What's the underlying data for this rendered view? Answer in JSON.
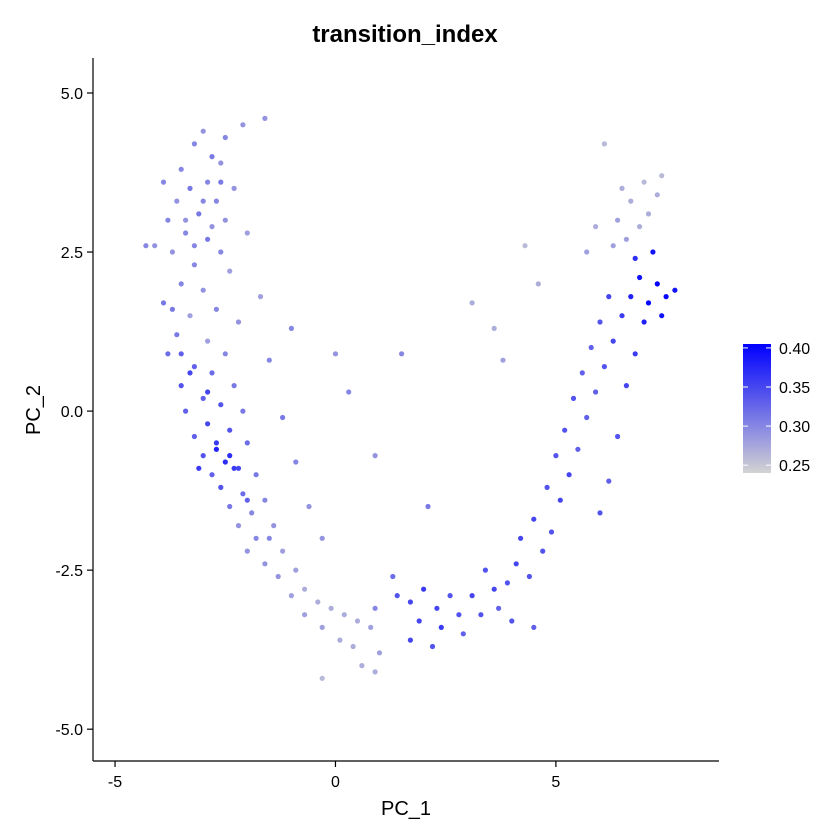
{
  "chart_data": {
    "type": "scatter",
    "title": "transition_index",
    "xlabel": "PC_1",
    "ylabel": "PC_2",
    "xlim": [
      -5.5,
      8.7
    ],
    "ylim": [
      -5.5,
      5.55
    ],
    "x_ticks": [
      -5,
      0,
      5
    ],
    "x_tick_labels": [
      "-5",
      "0",
      "5"
    ],
    "y_ticks": [
      5.0,
      2.5,
      0.0,
      -2.5,
      -5.0
    ],
    "y_tick_labels": [
      "5.0",
      "2.5",
      "0.0",
      "-2.5",
      "-5.0"
    ],
    "grid": false,
    "legend": {
      "placement": "right",
      "type": "colorbar",
      "range": [
        0.24,
        0.405
      ],
      "ticks": [
        0.4,
        0.35,
        0.3,
        0.25
      ],
      "tick_labels": [
        "0.40",
        "0.35",
        "0.30",
        "0.25"
      ]
    },
    "color_low": "#d3d3d3",
    "color_high": "#0000ff",
    "point_color_value": "transition_index",
    "points": [
      [
        -3.2,
        4.2,
        0.3
      ],
      [
        -3.0,
        4.4,
        0.29
      ],
      [
        -2.8,
        4.0,
        0.31
      ],
      [
        -3.5,
        3.8,
        0.3
      ],
      [
        -2.6,
        3.9,
        0.29
      ],
      [
        -3.3,
        3.5,
        0.31
      ],
      [
        -2.9,
        3.6,
        0.3
      ],
      [
        -3.6,
        3.3,
        0.29
      ],
      [
        -2.7,
        3.3,
        0.3
      ],
      [
        -3.1,
        3.1,
        0.31
      ],
      [
        -3.8,
        3.0,
        0.3
      ],
      [
        -2.5,
        3.0,
        0.29
      ],
      [
        -3.4,
        2.8,
        0.3
      ],
      [
        -2.9,
        2.7,
        0.31
      ],
      [
        -3.7,
        2.5,
        0.29
      ],
      [
        -2.6,
        2.5,
        0.3
      ],
      [
        -3.2,
        2.3,
        0.3
      ],
      [
        -4.1,
        2.6,
        0.29
      ],
      [
        -2.4,
        2.2,
        0.28
      ],
      [
        -3.5,
        2.0,
        0.3
      ],
      [
        -3.0,
        1.9,
        0.29
      ],
      [
        -3.9,
        1.7,
        0.31
      ],
      [
        -2.7,
        1.6,
        0.3
      ],
      [
        -3.3,
        1.5,
        0.28
      ],
      [
        -2.2,
        1.4,
        0.29
      ],
      [
        -3.6,
        1.2,
        0.31
      ],
      [
        -2.9,
        1.1,
        0.28
      ],
      [
        -3.8,
        0.9,
        0.32
      ],
      [
        -2.5,
        0.9,
        0.3
      ],
      [
        -3.2,
        0.7,
        0.33
      ],
      [
        -2.8,
        0.6,
        0.32
      ],
      [
        -3.5,
        0.4,
        0.34
      ],
      [
        -2.3,
        0.4,
        0.31
      ],
      [
        -3.0,
        0.2,
        0.33
      ],
      [
        -2.6,
        0.1,
        0.34
      ],
      [
        -3.4,
        0.0,
        0.33
      ],
      [
        -2.1,
        0.0,
        0.31
      ],
      [
        -2.9,
        -0.2,
        0.35
      ],
      [
        -2.4,
        -0.3,
        0.34
      ],
      [
        -3.2,
        -0.4,
        0.33
      ],
      [
        -2.7,
        -0.5,
        0.36
      ],
      [
        -2.0,
        -0.5,
        0.32
      ],
      [
        -3.0,
        -0.7,
        0.34
      ],
      [
        -2.5,
        -0.8,
        0.37
      ],
      [
        -2.2,
        -0.9,
        0.35
      ],
      [
        -2.8,
        -1.0,
        0.33
      ],
      [
        -1.8,
        -1.0,
        0.31
      ],
      [
        -2.6,
        -1.2,
        0.34
      ],
      [
        -2.1,
        -1.3,
        0.32
      ],
      [
        -1.6,
        -1.4,
        0.3
      ],
      [
        -2.4,
        -1.5,
        0.31
      ],
      [
        -1.9,
        -1.6,
        0.3
      ],
      [
        -2.2,
        -1.8,
        0.29
      ],
      [
        -1.4,
        -1.8,
        0.29
      ],
      [
        -1.8,
        -2.0,
        0.3
      ],
      [
        -2.0,
        -2.2,
        0.29
      ],
      [
        -1.2,
        -2.2,
        0.28
      ],
      [
        -1.6,
        -2.4,
        0.29
      ],
      [
        -0.9,
        -2.5,
        0.28
      ],
      [
        -1.3,
        -2.6,
        0.29
      ],
      [
        -0.7,
        -2.8,
        0.27
      ],
      [
        -1.0,
        -2.9,
        0.28
      ],
      [
        -0.4,
        -3.0,
        0.27
      ],
      [
        -0.7,
        -3.2,
        0.28
      ],
      [
        -0.1,
        -3.1,
        0.27
      ],
      [
        0.2,
        -3.2,
        0.27
      ],
      [
        -0.3,
        -3.4,
        0.28
      ],
      [
        0.5,
        -3.3,
        0.27
      ],
      [
        0.1,
        -3.6,
        0.27
      ],
      [
        0.8,
        -3.4,
        0.28
      ],
      [
        0.4,
        -3.7,
        0.27
      ],
      [
        1.0,
        -3.8,
        0.28
      ],
      [
        0.6,
        -4.0,
        0.27
      ],
      [
        -0.3,
        -4.2,
        0.26
      ],
      [
        0.9,
        -4.1,
        0.27
      ],
      [
        -3.9,
        3.6,
        0.3
      ],
      [
        -4.3,
        2.6,
        0.3
      ],
      [
        -2.3,
        3.5,
        0.29
      ],
      [
        -2.0,
        2.8,
        0.28
      ],
      [
        -1.7,
        1.8,
        0.28
      ],
      [
        -1.5,
        0.8,
        0.3
      ],
      [
        -1.2,
        -0.1,
        0.31
      ],
      [
        -0.9,
        -0.8,
        0.3
      ],
      [
        -0.6,
        -1.5,
        0.29
      ],
      [
        -0.3,
        -2.0,
        0.29
      ],
      [
        -1.6,
        4.6,
        0.29
      ],
      [
        -2.1,
        4.5,
        0.29
      ],
      [
        -2.5,
        4.3,
        0.3
      ],
      [
        -1.0,
        1.3,
        0.3
      ],
      [
        0.0,
        0.9,
        0.29
      ],
      [
        0.3,
        0.3,
        0.3
      ],
      [
        0.9,
        -0.7,
        0.29
      ],
      [
        1.5,
        0.9,
        0.3
      ],
      [
        2.1,
        -1.5,
        0.31
      ],
      [
        1.3,
        -2.6,
        0.32
      ],
      [
        1.4,
        -2.9,
        0.34
      ],
      [
        1.7,
        -3.0,
        0.35
      ],
      [
        2.0,
        -2.8,
        0.36
      ],
      [
        2.3,
        -3.1,
        0.35
      ],
      [
        2.6,
        -2.9,
        0.34
      ],
      [
        1.9,
        -3.3,
        0.35
      ],
      [
        2.4,
        -3.4,
        0.36
      ],
      [
        2.8,
        -3.2,
        0.34
      ],
      [
        3.1,
        -2.9,
        0.35
      ],
      [
        2.9,
        -3.5,
        0.33
      ],
      [
        3.3,
        -3.2,
        0.34
      ],
      [
        3.6,
        -2.8,
        0.35
      ],
      [
        3.4,
        -2.5,
        0.34
      ],
      [
        3.9,
        -2.7,
        0.34
      ],
      [
        3.7,
        -3.1,
        0.33
      ],
      [
        4.1,
        -2.4,
        0.35
      ],
      [
        4.4,
        -2.6,
        0.34
      ],
      [
        4.2,
        -2.0,
        0.35
      ],
      [
        4.7,
        -2.2,
        0.34
      ],
      [
        4.5,
        -1.7,
        0.35
      ],
      [
        4.9,
        -1.9,
        0.34
      ],
      [
        5.1,
        -1.4,
        0.35
      ],
      [
        4.8,
        -1.2,
        0.34
      ],
      [
        5.3,
        -1.0,
        0.35
      ],
      [
        5.0,
        -0.7,
        0.34
      ],
      [
        5.5,
        -0.6,
        0.33
      ],
      [
        5.2,
        -0.3,
        0.34
      ],
      [
        5.7,
        -0.1,
        0.33
      ],
      [
        5.4,
        0.2,
        0.34
      ],
      [
        5.9,
        0.3,
        0.33
      ],
      [
        5.6,
        0.6,
        0.33
      ],
      [
        6.1,
        0.7,
        0.34
      ],
      [
        5.8,
        1.0,
        0.33
      ],
      [
        6.3,
        1.1,
        0.35
      ],
      [
        6.0,
        1.4,
        0.34
      ],
      [
        6.5,
        1.5,
        0.36
      ],
      [
        6.2,
        1.8,
        0.35
      ],
      [
        6.7,
        1.8,
        0.38
      ],
      [
        6.9,
        2.1,
        0.39
      ],
      [
        7.1,
        1.7,
        0.4
      ],
      [
        7.3,
        2.0,
        0.41
      ],
      [
        7.5,
        1.8,
        0.4
      ],
      [
        7.7,
        1.9,
        0.39
      ],
      [
        7.0,
        1.4,
        0.38
      ],
      [
        7.4,
        1.5,
        0.39
      ],
      [
        6.8,
        2.4,
        0.37
      ],
      [
        7.2,
        2.5,
        0.39
      ],
      [
        6.6,
        2.7,
        0.28
      ],
      [
        6.9,
        2.9,
        0.27
      ],
      [
        7.1,
        3.1,
        0.27
      ],
      [
        6.4,
        3.0,
        0.28
      ],
      [
        6.7,
        3.3,
        0.27
      ],
      [
        7.3,
        3.4,
        0.27
      ],
      [
        7.0,
        3.6,
        0.26
      ],
      [
        6.3,
        2.6,
        0.28
      ],
      [
        7.4,
        3.7,
        0.26
      ],
      [
        6.5,
        3.5,
        0.27
      ],
      [
        6.1,
        4.2,
        0.26
      ],
      [
        5.9,
        2.9,
        0.27
      ],
      [
        5.7,
        2.5,
        0.28
      ],
      [
        4.6,
        2.0,
        0.27
      ],
      [
        4.3,
        2.6,
        0.26
      ],
      [
        3.6,
        1.3,
        0.27
      ],
      [
        3.1,
        1.7,
        0.27
      ],
      [
        3.8,
        0.8,
        0.28
      ],
      [
        6.6,
        0.4,
        0.35
      ],
      [
        6.8,
        0.9,
        0.36
      ],
      [
        6.4,
        -0.4,
        0.34
      ],
      [
        6.2,
        -1.1,
        0.33
      ],
      [
        6.0,
        -1.6,
        0.34
      ],
      [
        4.5,
        -3.4,
        0.33
      ],
      [
        4.0,
        -3.3,
        0.34
      ],
      [
        1.7,
        -3.6,
        0.35
      ],
      [
        2.2,
        -3.7,
        0.34
      ],
      [
        0.9,
        -3.1,
        0.3
      ],
      [
        -2.7,
        -0.6,
        0.38
      ],
      [
        -2.4,
        -0.7,
        0.37
      ],
      [
        -3.1,
        -0.9,
        0.36
      ],
      [
        -2.9,
        0.3,
        0.35
      ],
      [
        -3.3,
        0.6,
        0.35
      ],
      [
        -2.6,
        3.6,
        0.31
      ],
      [
        -3.0,
        3.3,
        0.3
      ],
      [
        -3.4,
        3.0,
        0.29
      ],
      [
        -2.8,
        2.9,
        0.29
      ],
      [
        -3.2,
        2.6,
        0.3
      ],
      [
        -3.7,
        1.6,
        0.31
      ],
      [
        -3.5,
        0.9,
        0.33
      ],
      [
        -2.3,
        -0.9,
        0.36
      ],
      [
        -2.0,
        -1.4,
        0.33
      ],
      [
        -1.5,
        -2.0,
        0.3
      ]
    ]
  }
}
